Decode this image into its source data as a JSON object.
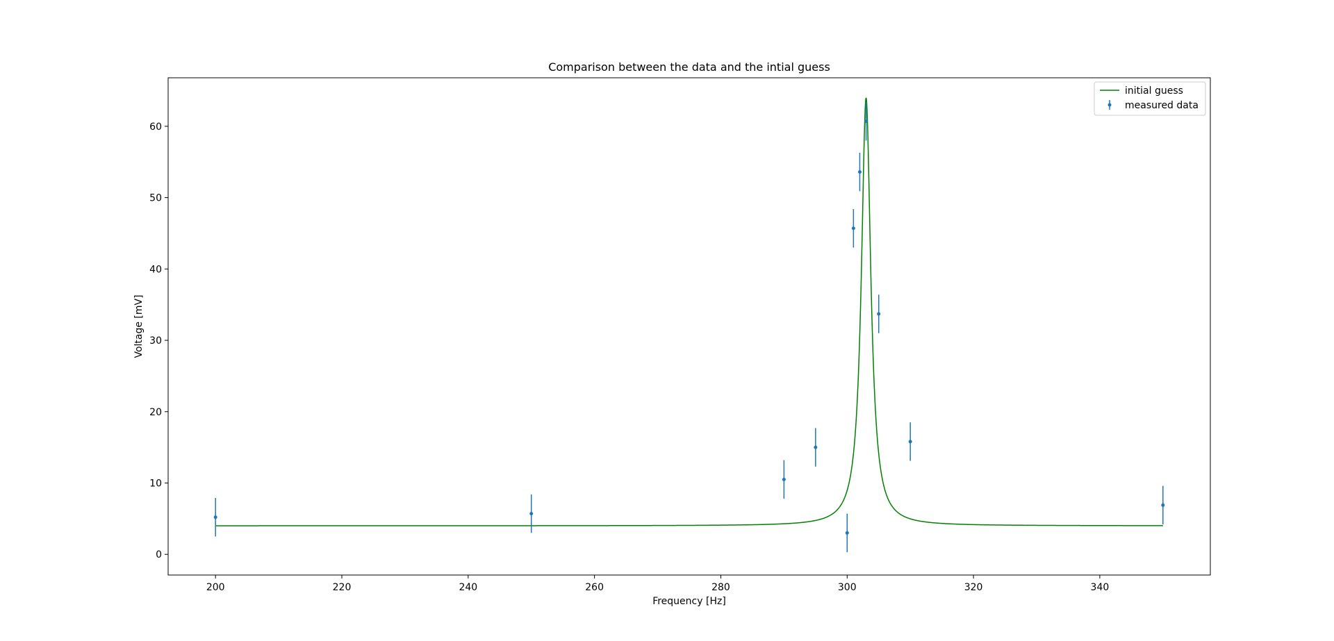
{
  "chart_data": {
    "type": "line",
    "title": "Comparison between the data and the intial guess",
    "xlabel": "Frequency [Hz]",
    "ylabel": "Voltage [mV]",
    "xlim": [
      192.5,
      357.5
    ],
    "ylim": [
      -2.9,
      66.8
    ],
    "x_ticks": [
      200,
      220,
      240,
      260,
      280,
      300,
      320,
      340
    ],
    "y_ticks": [
      0,
      10,
      20,
      30,
      40,
      50,
      60
    ],
    "grid": false,
    "legend": {
      "placement": "top-right",
      "entries": [
        "initial guess",
        "measured data"
      ]
    },
    "series": [
      {
        "name": "initial guess",
        "kind": "line",
        "color": "#008000",
        "model": {
          "baseline": 4.0,
          "amplitude": 60.0,
          "center": 303.0,
          "half_width": 0.9,
          "x_min": 200,
          "x_max": 350
        }
      },
      {
        "name": "measured data",
        "kind": "errorbar",
        "color": "#1f77b4",
        "x": [
          200,
          250,
          290,
          295,
          300,
          301,
          302,
          303,
          305,
          310,
          350
        ],
        "y": [
          5.2,
          5.7,
          10.5,
          15.0,
          3.0,
          45.7,
          53.6,
          60.7,
          33.7,
          15.8,
          6.9
        ],
        "yerr": [
          2.7,
          2.7,
          2.7,
          2.7,
          2.7,
          2.7,
          2.7,
          2.7,
          2.7,
          2.7,
          2.7
        ]
      }
    ]
  }
}
